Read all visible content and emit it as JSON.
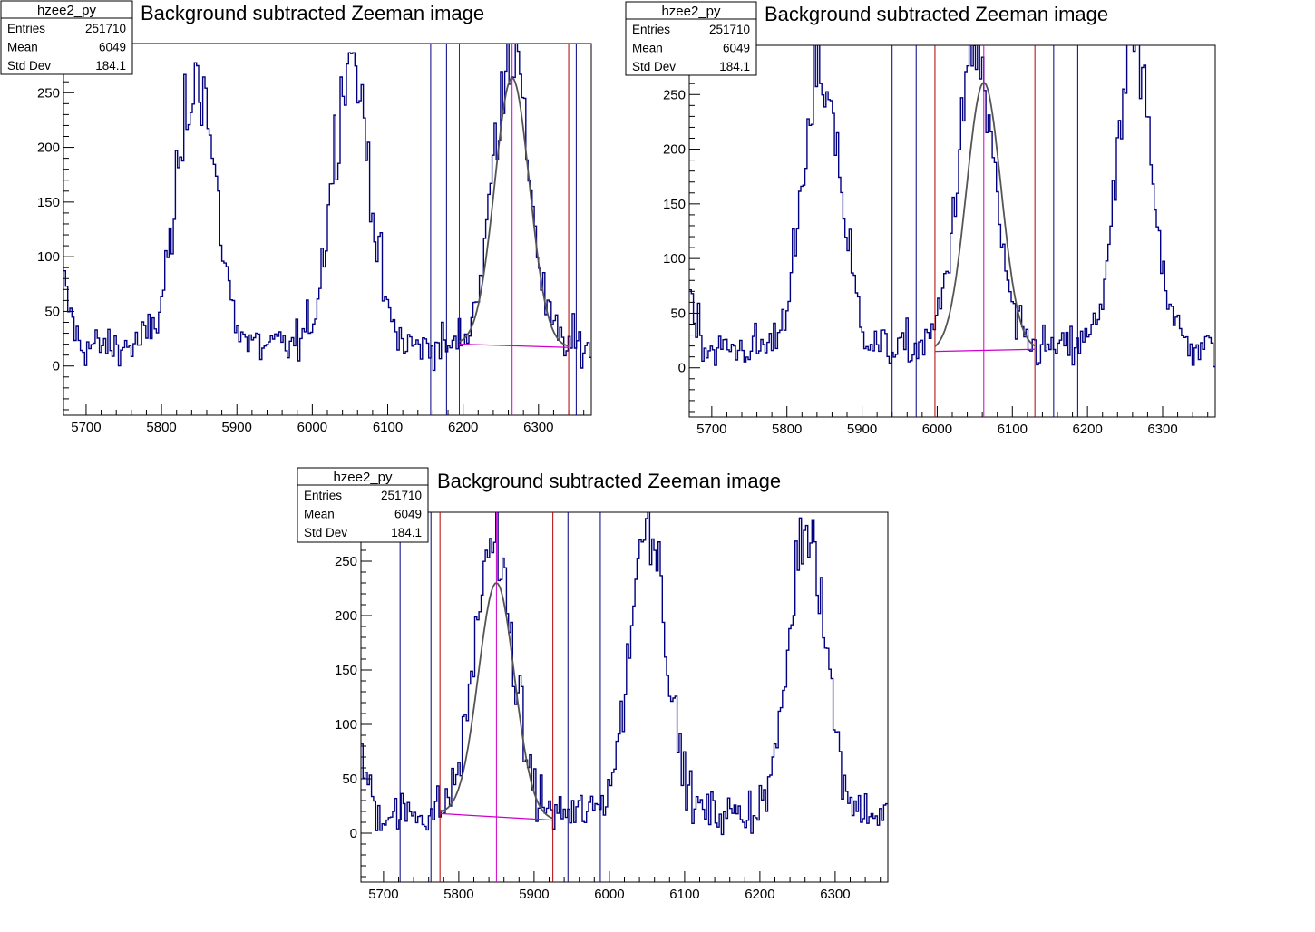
{
  "chart_data": [
    {
      "type": "line",
      "title": "Background subtracted Zeeman image",
      "xlabel": "",
      "ylabel": "",
      "xlim": [
        5670,
        6370
      ],
      "ylim": [
        -45,
        295
      ],
      "x_ticks": [
        5700,
        5800,
        5900,
        6000,
        6100,
        6200,
        6300
      ],
      "y_ticks": [
        0,
        50,
        100,
        150,
        200,
        250
      ],
      "grid": false,
      "stats": {
        "name": "hzee2_py",
        "rows": [
          {
            "label": "Entries",
            "value": "251710"
          },
          {
            "label": "Mean",
            "value": "6049"
          },
          {
            "label": "Std Dev",
            "value": "184.1"
          }
        ]
      },
      "series": [
        {
          "type": "step",
          "color": "#000080",
          "peaks": [
            {
              "center": 5845,
              "height": 250,
              "sigma": 25
            },
            {
              "center": 6050,
              "height": 270,
              "sigma": 24
            },
            {
              "center": 6262,
              "height": 270,
              "sigma": 24
            }
          ]
        },
        {
          "type": "fit",
          "color": "#555555",
          "center": 6265,
          "height": 245,
          "sigma": 23,
          "range": [
            6195,
            6340
          ],
          "bg_start": 20,
          "bg_end": 17
        },
        {
          "type": "background",
          "color": "#cc00cc",
          "x": [
            6195,
            6340
          ],
          "y": [
            20,
            17
          ]
        }
      ],
      "vlines": [
        {
          "x": 6157,
          "color": "#000080"
        },
        {
          "x": 6178,
          "color": "#000080"
        },
        {
          "x": 6195,
          "color": "#b00000"
        },
        {
          "x": 6265,
          "color": "#cc00cc"
        },
        {
          "x": 6340,
          "color": "#b00000"
        },
        {
          "x": 6350,
          "color": "#000080"
        }
      ]
    },
    {
      "type": "line",
      "title": "Background subtracted Zeeman image",
      "xlabel": "",
      "ylabel": "",
      "xlim": [
        5670,
        6370
      ],
      "ylim": [
        -45,
        295
      ],
      "x_ticks": [
        5700,
        5800,
        5900,
        6000,
        6100,
        6200,
        6300
      ],
      "y_ticks": [
        0,
        50,
        100,
        150,
        200,
        250
      ],
      "grid": false,
      "stats": {
        "name": "hzee2_py",
        "rows": [
          {
            "label": "Entries",
            "value": "251710"
          },
          {
            "label": "Mean",
            "value": "6049"
          },
          {
            "label": "Std Dev",
            "value": "184.1"
          }
        ]
      },
      "series": [
        {
          "type": "step",
          "color": "#000080",
          "peaks": [
            {
              "center": 5845,
              "height": 250,
              "sigma": 25
            },
            {
              "center": 6050,
              "height": 270,
              "sigma": 24
            },
            {
              "center": 6262,
              "height": 270,
              "sigma": 24
            }
          ]
        },
        {
          "type": "fit",
          "color": "#555555",
          "center": 6062,
          "height": 245,
          "sigma": 23,
          "range": [
            5997,
            6130
          ],
          "bg_start": 15,
          "bg_end": 17
        },
        {
          "type": "background",
          "color": "#cc00cc",
          "x": [
            5997,
            6130
          ],
          "y": [
            15,
            17
          ]
        }
      ],
      "vlines": [
        {
          "x": 5940,
          "color": "#000080"
        },
        {
          "x": 5972,
          "color": "#000080"
        },
        {
          "x": 5997,
          "color": "#b00000"
        },
        {
          "x": 6062,
          "color": "#cc00cc"
        },
        {
          "x": 6130,
          "color": "#b00000"
        },
        {
          "x": 6155,
          "color": "#000080"
        },
        {
          "x": 6187,
          "color": "#000080"
        }
      ]
    },
    {
      "type": "line",
      "title": "Background subtracted Zeeman image",
      "xlabel": "",
      "ylabel": "",
      "xlim": [
        5670,
        6370
      ],
      "ylim": [
        -45,
        295
      ],
      "x_ticks": [
        5700,
        5800,
        5900,
        6000,
        6100,
        6200,
        6300
      ],
      "y_ticks": [
        0,
        50,
        100,
        150,
        200,
        250
      ],
      "grid": false,
      "stats": {
        "name": "hzee2_py",
        "rows": [
          {
            "label": "Entries",
            "value": "251710"
          },
          {
            "label": "Mean",
            "value": "6049"
          },
          {
            "label": "Std Dev",
            "value": "184.1"
          }
        ]
      },
      "series": [
        {
          "type": "step",
          "color": "#000080",
          "peaks": [
            {
              "center": 5845,
              "height": 250,
              "sigma": 25
            },
            {
              "center": 6050,
              "height": 270,
              "sigma": 24
            },
            {
              "center": 6262,
              "height": 270,
              "sigma": 24
            }
          ]
        },
        {
          "type": "fit",
          "color": "#555555",
          "center": 5850,
          "height": 215,
          "sigma": 24,
          "range": [
            5775,
            5925
          ],
          "bg_start": 18,
          "bg_end": 12
        },
        {
          "type": "background",
          "color": "#cc00cc",
          "x": [
            5775,
            5925
          ],
          "y": [
            18,
            12
          ]
        }
      ],
      "vlines": [
        {
          "x": 5722,
          "color": "#000080"
        },
        {
          "x": 5763,
          "color": "#000080"
        },
        {
          "x": 5775,
          "color": "#b00000"
        },
        {
          "x": 5850,
          "color": "#cc00cc"
        },
        {
          "x": 5925,
          "color": "#b00000"
        },
        {
          "x": 5945,
          "color": "#000080"
        },
        {
          "x": 5988,
          "color": "#000080"
        }
      ]
    }
  ]
}
